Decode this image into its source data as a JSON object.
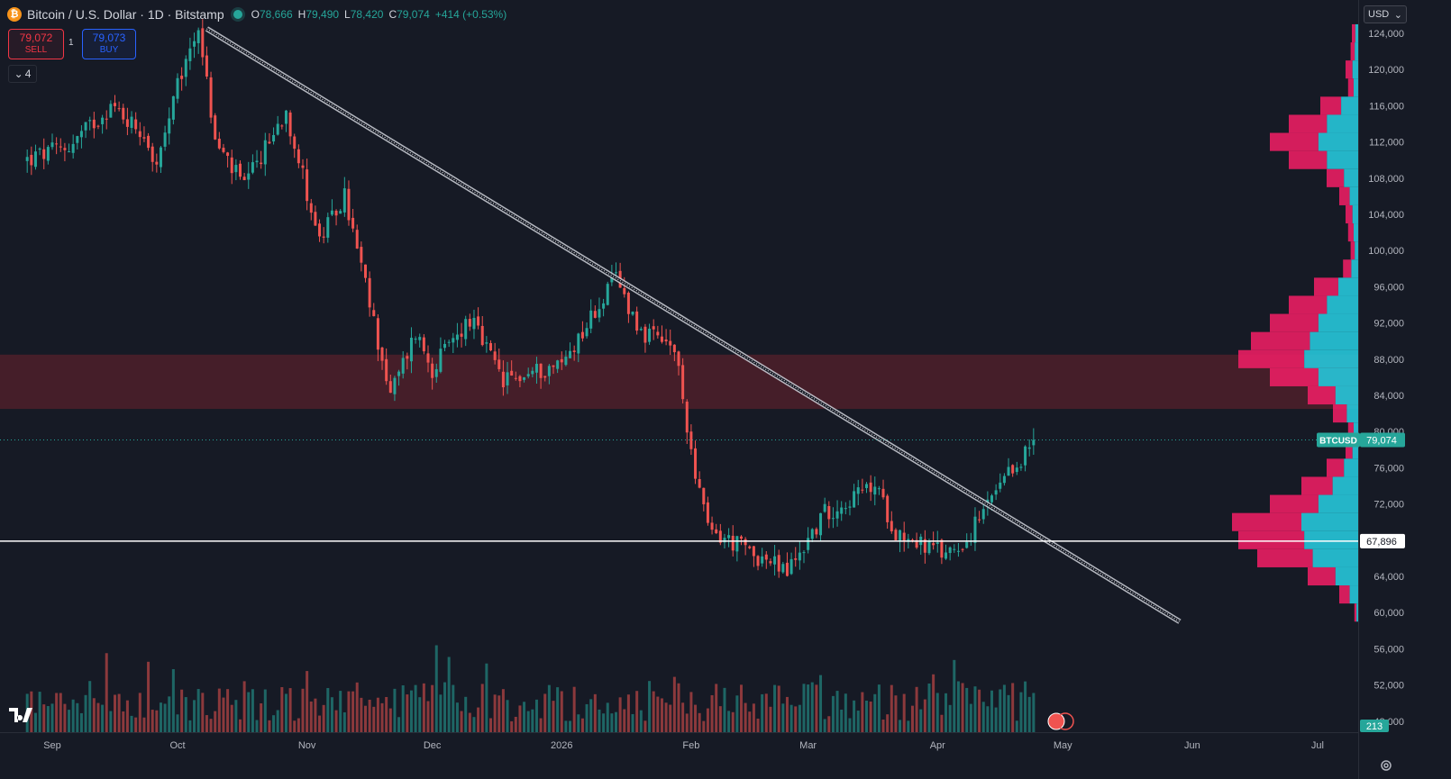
{
  "header": {
    "symbol_icon": "bitcoin-icon",
    "title": "Bitcoin / U.S. Dollar · 1D · Bitstamp",
    "ohlc": {
      "o_label": "O",
      "o": "78,666",
      "h_label": "H",
      "h": "79,490",
      "l_label": "L",
      "l": "78,420",
      "c_label": "C",
      "c": "79,074",
      "change": "+414 (+0.53%)"
    }
  },
  "trade": {
    "sell_price": "79,072",
    "sell_label": "SELL",
    "spread": "1",
    "buy_price": "79,073",
    "buy_label": "BUY"
  },
  "indicators_count": "4",
  "currency": "USD",
  "colors": {
    "up": "#26a69a",
    "down": "#ef5350",
    "background": "#161a25",
    "zone": "#4a1f2a",
    "profile_pink": "#e91e63",
    "profile_cyan": "#26c6da"
  },
  "chart_data": {
    "type": "candlestick",
    "title": "Bitcoin / U.S. Dollar · 1D · Bitstamp",
    "y_axis_ticks": [
      "124,000",
      "120,000",
      "116,000",
      "112,000",
      "108,000",
      "104,000",
      "100,000",
      "96,000",
      "92,000",
      "88,000",
      "84,000",
      "80,000",
      "76,000",
      "72,000",
      "68,000",
      "64,000",
      "60,000",
      "56,000",
      "52,000",
      "48,000"
    ],
    "ylim": [
      47000,
      126000
    ],
    "x_axis_ticks": [
      "Sep",
      "Oct",
      "Nov",
      "Dec",
      "2026",
      "Feb",
      "Mar",
      "Apr",
      "May",
      "Jun",
      "Jul"
    ],
    "price_anchors": [
      [
        "2025-08-26",
        110000
      ],
      [
        "2025-09-05",
        111500
      ],
      [
        "2025-09-15",
        116000
      ],
      [
        "2025-09-23",
        113000
      ],
      [
        "2025-09-26",
        109000
      ],
      [
        "2025-10-01",
        118000
      ],
      [
        "2025-10-06",
        125000
      ],
      [
        "2025-10-10",
        112000
      ],
      [
        "2025-10-17",
        107000
      ],
      [
        "2025-10-27",
        115500
      ],
      [
        "2025-11-04",
        101000
      ],
      [
        "2025-11-10",
        106000
      ],
      [
        "2025-11-21",
        84000
      ],
      [
        "2025-11-27",
        91000
      ],
      [
        "2025-12-01",
        87000
      ],
      [
        "2025-12-10",
        92500
      ],
      [
        "2025-12-18",
        85500
      ],
      [
        "2026-01-01",
        87500
      ],
      [
        "2026-01-14",
        97000
      ],
      [
        "2026-01-20",
        91000
      ],
      [
        "2026-01-28",
        89000
      ],
      [
        "2026-02-01",
        78000
      ],
      [
        "2026-02-05",
        69000
      ],
      [
        "2026-02-12",
        67500
      ],
      [
        "2026-02-24",
        64500
      ],
      [
        "2026-03-05",
        71000
      ],
      [
        "2026-03-17",
        74000
      ],
      [
        "2026-03-22",
        69000
      ],
      [
        "2026-04-02",
        66500
      ],
      [
        "2026-04-08",
        68000
      ],
      [
        "2026-04-14",
        72500
      ],
      [
        "2026-04-18",
        75000
      ],
      [
        "2026-04-24",
        79000
      ]
    ],
    "last_price": 79074,
    "last_price_label": "79,074",
    "symbol_label": "BTCUSD",
    "horizontal_line": {
      "price": 67896,
      "label": "67,896"
    },
    "resistance_zone": {
      "from": 82500,
      "to": 88500
    },
    "trendline": {
      "from": [
        "2025-10-08",
        124500
      ],
      "to": [
        "2026-05-29",
        59000
      ]
    },
    "volume_label": "213",
    "volume_profile": [
      [
        124000,
        0.05
      ],
      [
        122000,
        0.06
      ],
      [
        120000,
        0.1
      ],
      [
        118000,
        0.08
      ],
      [
        116000,
        0.3
      ],
      [
        114000,
        0.55
      ],
      [
        112000,
        0.7
      ],
      [
        110000,
        0.55
      ],
      [
        108000,
        0.25
      ],
      [
        106000,
        0.15
      ],
      [
        104000,
        0.1
      ],
      [
        102000,
        0.08
      ],
      [
        100000,
        0.06
      ],
      [
        98000,
        0.12
      ],
      [
        96000,
        0.35
      ],
      [
        94000,
        0.55
      ],
      [
        92000,
        0.7
      ],
      [
        90000,
        0.85
      ],
      [
        88000,
        0.95
      ],
      [
        86000,
        0.7
      ],
      [
        84000,
        0.4
      ],
      [
        82000,
        0.2
      ],
      [
        80000,
        0.08
      ],
      [
        78000,
        0.1
      ],
      [
        76000,
        0.25
      ],
      [
        74000,
        0.45
      ],
      [
        72000,
        0.7
      ],
      [
        70000,
        1.0
      ],
      [
        68000,
        0.95
      ],
      [
        66000,
        0.8
      ],
      [
        64000,
        0.4
      ],
      [
        62000,
        0.15
      ],
      [
        60000,
        0.03
      ]
    ]
  }
}
